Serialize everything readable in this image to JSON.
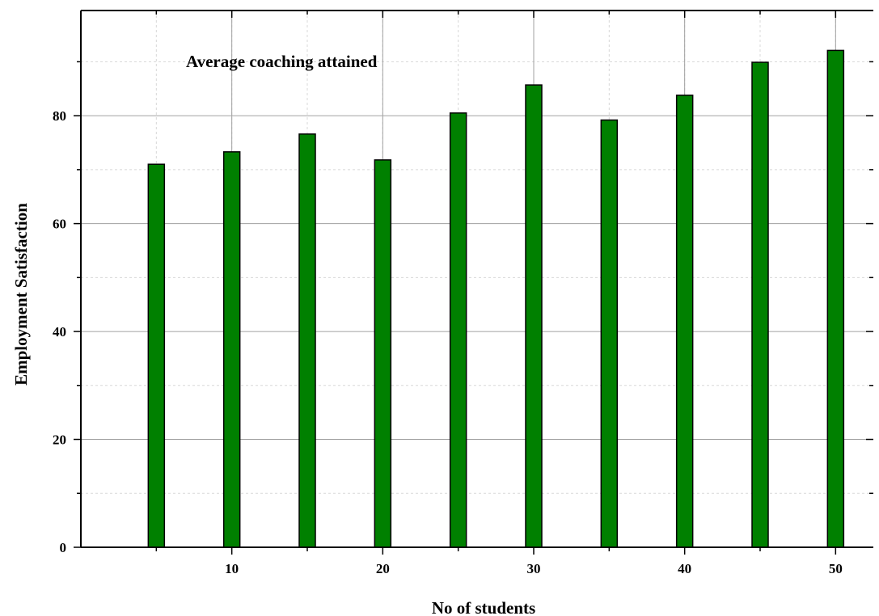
{
  "chart_data": {
    "type": "bar",
    "title": "",
    "xlabel": "No of students",
    "ylabel": "Employment Satisfaction",
    "annotation": "Average coaching attained",
    "x": [
      5,
      10,
      15,
      20,
      25,
      30,
      35,
      40,
      45,
      50
    ],
    "series": [
      {
        "name": "",
        "values": [
          71,
          73.3,
          76.6,
          71.8,
          80.5,
          85.7,
          79.2,
          83.8,
          89.9,
          92.1
        ]
      }
    ],
    "xlim": [
      0,
      52.5
    ],
    "ylim": [
      0,
      99.5
    ],
    "x_ticks": [
      10,
      20,
      30,
      40,
      50
    ],
    "x_tick_labels": [
      "10",
      "20",
      "30",
      "40",
      "50"
    ],
    "y_ticks": [
      0,
      20,
      40,
      60,
      80
    ],
    "y_tick_labels": [
      "0",
      "20",
      "40",
      "60",
      "80"
    ],
    "grid": true,
    "legend": "none",
    "colors": {
      "bar_fill": "#008000",
      "bar_stroke": "#000000",
      "grid_major": "#a0a0a0",
      "grid_minor": "#d8d8d8"
    }
  }
}
